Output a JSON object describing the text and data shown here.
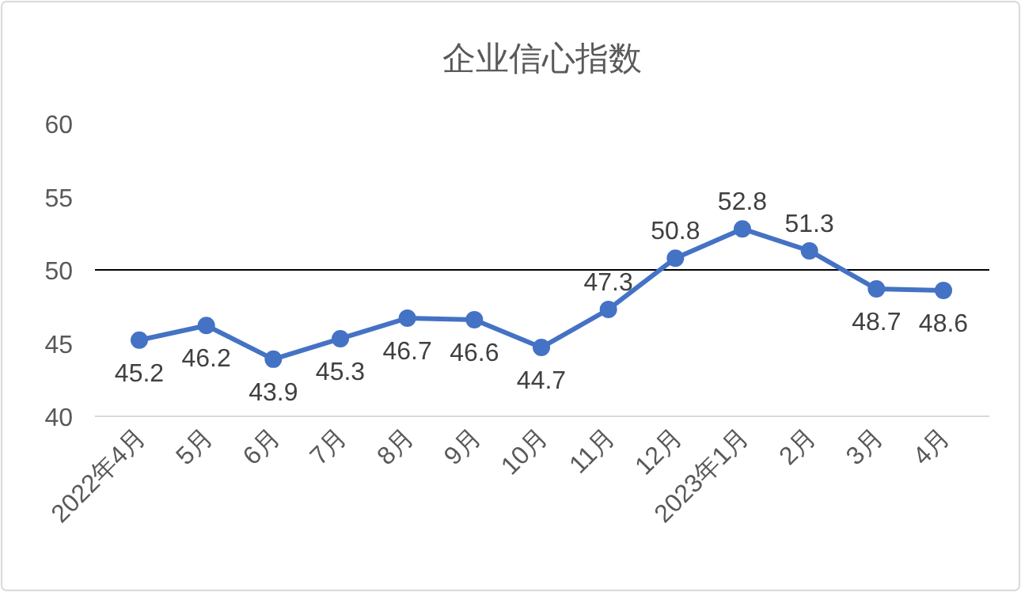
{
  "chart_data": {
    "type": "line",
    "title": "企业信心指数",
    "categories": [
      "2022年4月",
      "5月",
      "6月",
      "7月",
      "8月",
      "9月",
      "10月",
      "11月",
      "12月",
      "2023年1月",
      "2月",
      "3月",
      "4月"
    ],
    "series": [
      {
        "color": "#4472c4",
        "values": [
          45.2,
          46.2,
          43.9,
          45.3,
          46.7,
          46.6,
          44.7,
          47.3,
          50.8,
          52.8,
          51.3,
          48.7,
          48.6
        ]
      }
    ],
    "ylim": [
      40,
      60
    ],
    "yticks": [
      40,
      45,
      50,
      55,
      60
    ],
    "grid": false,
    "marker": "circle",
    "line_style": "solid",
    "data_labels": true,
    "ref_lines": [
      {
        "axis": "y",
        "value": 50,
        "color": "#000000"
      }
    ]
  }
}
